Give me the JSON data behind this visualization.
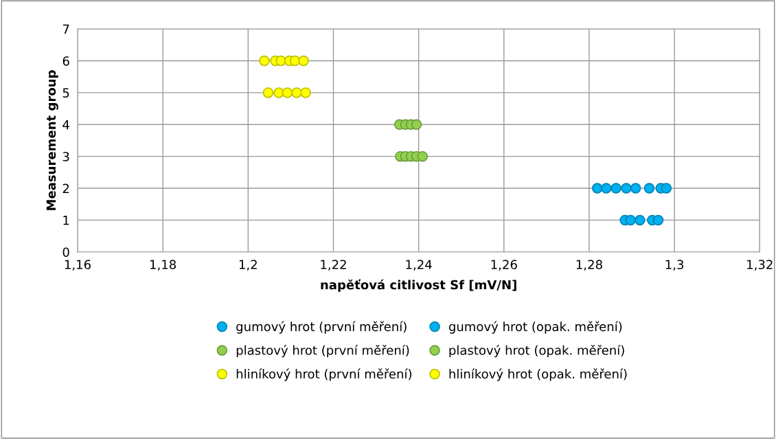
{
  "chart_data": {
    "type": "scatter",
    "xlabel": "napěťová citlivost Sf [mV/N]",
    "ylabel": "Measurement group",
    "xlim": [
      1.16,
      1.32
    ],
    "xticks": [
      {
        "value": 1.16,
        "label": "1,16"
      },
      {
        "value": 1.18,
        "label": "1,18"
      },
      {
        "value": 1.2,
        "label": "1,2"
      },
      {
        "value": 1.22,
        "label": "1,22"
      },
      {
        "value": 1.24,
        "label": "1,24"
      },
      {
        "value": 1.26,
        "label": "1,26"
      },
      {
        "value": 1.28,
        "label": "1,28"
      },
      {
        "value": 1.3,
        "label": "1,3"
      },
      {
        "value": 1.32,
        "label": "1,32"
      }
    ],
    "ylim": [
      0,
      7
    ],
    "yticks": [
      0,
      1,
      2,
      3,
      4,
      5,
      6,
      7
    ],
    "grid": true,
    "legend": "bottom",
    "marker": "circle",
    "series": [
      {
        "name": "gumový hrot (první měření)",
        "color": "#00b0f0",
        "x": [
          1.2884,
          1.2897,
          1.2919,
          1.2948,
          1.2962
        ],
        "values": [
          1,
          1,
          1,
          1,
          1
        ]
      },
      {
        "name": "gumový hrot (opak. měření)",
        "color": "#00b0f0",
        "x": [
          1.2819,
          1.284,
          1.2863,
          1.2887,
          1.2909,
          1.2941,
          1.2968,
          1.2981
        ],
        "values": [
          2,
          2,
          2,
          2,
          2,
          2,
          2,
          2
        ]
      },
      {
        "name": "plastový hrot (první měření)",
        "color": "#92d050",
        "x": [
          1.2357,
          1.2369,
          1.2382,
          1.2395,
          1.2409
        ],
        "values": [
          3,
          3,
          3,
          3,
          3
        ]
      },
      {
        "name": "plastový hrot (opak. měření)",
        "color": "#92d050",
        "x": [
          1.2355,
          1.2369,
          1.2382,
          1.2395
        ],
        "values": [
          4,
          4,
          4,
          4
        ]
      },
      {
        "name": "hliníkový hrot (první měření)",
        "color": "#ffff00",
        "x": [
          1.2047,
          1.2072,
          1.2092,
          1.2114,
          1.2135
        ],
        "values": [
          5,
          5,
          5,
          5,
          5
        ]
      },
      {
        "name": "hliníkový hrot (opak. měření)",
        "color": "#ffff00",
        "x": [
          1.2038,
          1.2064,
          1.2077,
          1.2097,
          1.211,
          1.213
        ],
        "values": [
          6,
          6,
          6,
          6,
          6,
          6
        ]
      }
    ]
  }
}
